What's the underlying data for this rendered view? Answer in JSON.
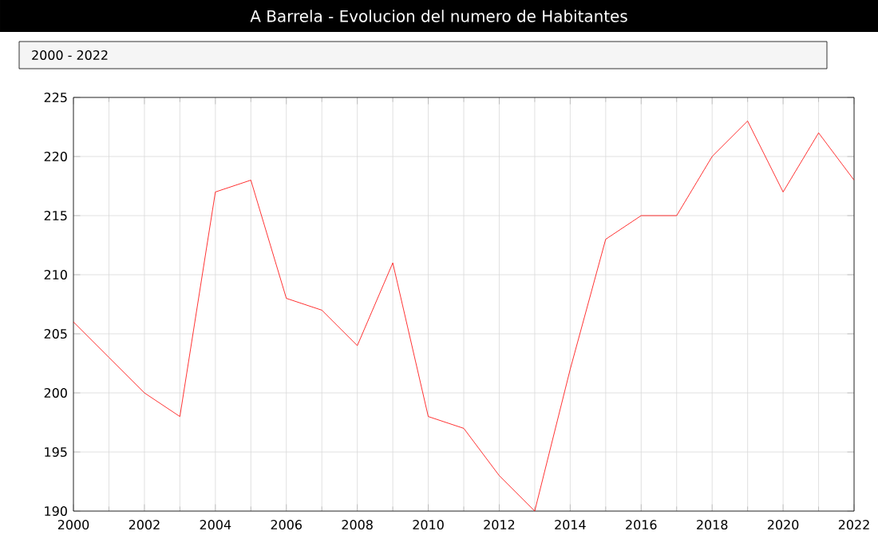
{
  "chart_data": {
    "type": "line",
    "title": "A Barrela - Evolucion del numero de Habitantes",
    "subtitle": "2000 - 2022",
    "x": [
      2000,
      2001,
      2002,
      2003,
      2004,
      2005,
      2006,
      2007,
      2008,
      2009,
      2010,
      2011,
      2012,
      2013,
      2014,
      2015,
      2016,
      2017,
      2018,
      2019,
      2020,
      2021,
      2022
    ],
    "series": [
      {
        "color": "#ff0000",
        "values": [
          206,
          203,
          200,
          198,
          217,
          218,
          208,
          207,
          204,
          211,
          198,
          197,
          193,
          190,
          202,
          213,
          215,
          215,
          220,
          223,
          217,
          222,
          218
        ]
      }
    ],
    "xlim": [
      2000,
      2022
    ],
    "xticks": [
      2000,
      2002,
      2004,
      2006,
      2008,
      2010,
      2012,
      2014,
      2016,
      2018,
      2020,
      2022
    ],
    "ylim": [
      190,
      225
    ],
    "yticks": [
      190,
      195,
      200,
      205,
      210,
      215,
      220,
      225
    ],
    "grid": true,
    "marker": "none",
    "line_style": "solid"
  }
}
